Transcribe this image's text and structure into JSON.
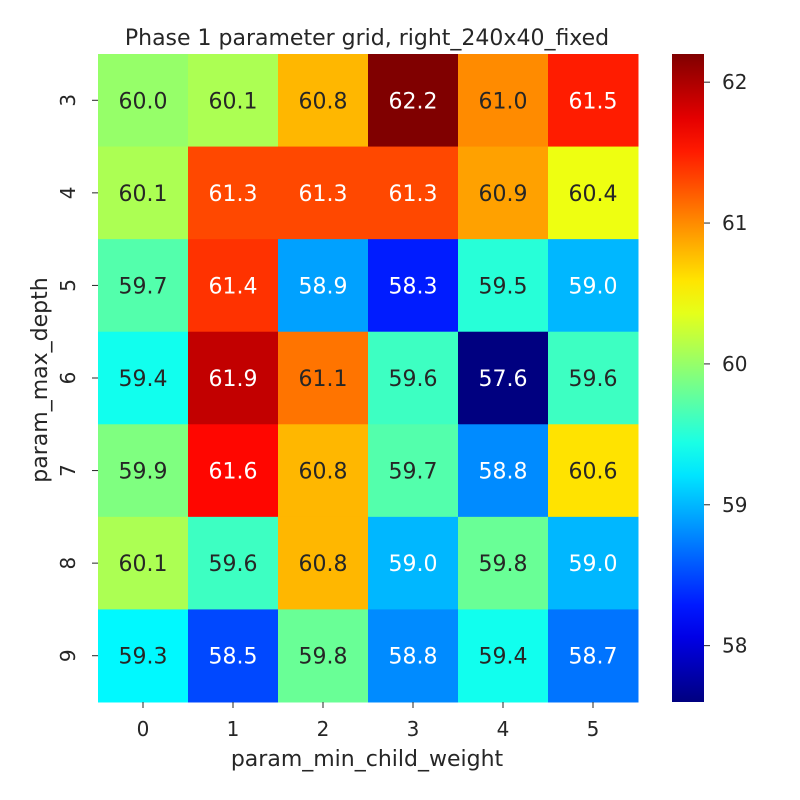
{
  "chart_data": {
    "type": "heatmap",
    "title": "Phase 1 parameter grid, right_240x40_fixed",
    "xlabel": "param_min_child_weight",
    "ylabel": "param_max_depth",
    "x_categories": [
      "0",
      "1",
      "2",
      "3",
      "4",
      "5"
    ],
    "y_categories": [
      "3",
      "4",
      "5",
      "6",
      "7",
      "8",
      "9"
    ],
    "values": [
      [
        60.0,
        60.1,
        60.8,
        62.2,
        61.0,
        61.5
      ],
      [
        60.1,
        61.3,
        61.3,
        61.3,
        60.9,
        60.4
      ],
      [
        59.7,
        61.4,
        58.9,
        58.3,
        59.5,
        59.0
      ],
      [
        59.4,
        61.9,
        61.1,
        59.6,
        57.6,
        59.6
      ],
      [
        59.9,
        61.6,
        60.8,
        59.7,
        58.8,
        60.6
      ],
      [
        60.1,
        59.6,
        60.8,
        59.0,
        59.8,
        59.0
      ],
      [
        59.3,
        58.5,
        59.8,
        58.8,
        59.4,
        58.7
      ]
    ],
    "colormap": "jet",
    "color_range": [
      57.6,
      62.2
    ],
    "colorbar_ticks": [
      "58",
      "59",
      "60",
      "61",
      "62"
    ],
    "value_format": "0.1f",
    "grid": false,
    "colorbar": "right"
  }
}
